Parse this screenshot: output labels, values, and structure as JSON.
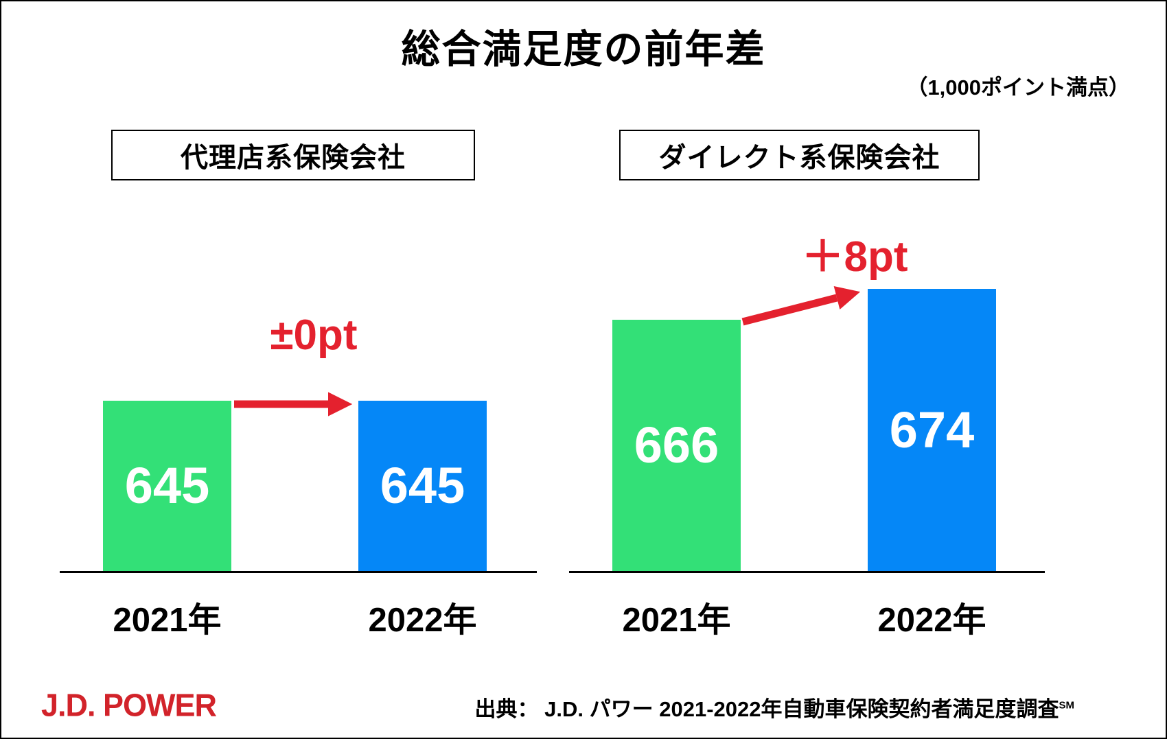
{
  "title": "総合満足度の前年差",
  "subtitle": "（1,000ポイント満点）",
  "colors": {
    "bar_2021_green": "#33E077",
    "bar_2022_blue": "#0587F7",
    "change_red": "#E4212E",
    "logo_red": "#D2232A"
  },
  "chart_data": [
    {
      "type": "bar",
      "title": "代理店系保険会社",
      "categories": [
        "2021年",
        "2022年"
      ],
      "values": [
        645,
        645
      ],
      "bar_colors": [
        "#33E077",
        "#0587F7"
      ],
      "change_label": "±0pt",
      "value_labels_inside_bars": true,
      "points_scale_max": 1000
    },
    {
      "type": "bar",
      "title": "ダイレクト系保険会社",
      "categories": [
        "2021年",
        "2022年"
      ],
      "values": [
        666,
        674
      ],
      "bar_colors": [
        "#33E077",
        "#0587F7"
      ],
      "change_label": "＋8pt",
      "value_labels_inside_bars": true,
      "points_scale_max": 1000
    }
  ],
  "footer": {
    "logo": "J.D. POWER",
    "source_text": "出典： J.D. パワー 2021-2022年自動車保険契約者満足度調査",
    "source_superscript": "SM"
  }
}
